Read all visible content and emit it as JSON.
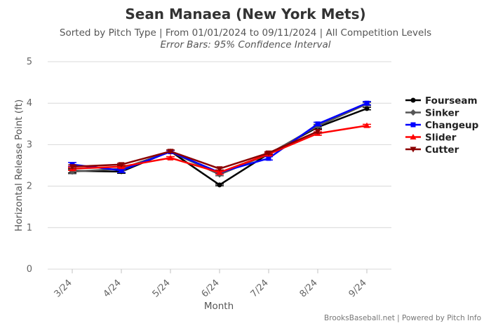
{
  "chart_data": {
    "type": "line",
    "title": "Sean Manaea (New York Mets)",
    "subtitle": "Sorted by Pitch Type | From 01/01/2024 to 09/11/2024 | All Competition Levels",
    "subtitle2": "Error Bars: 95% Confidence Interval",
    "xlabel": "Month",
    "ylabel": "Horizontal Release Point (ft)",
    "ylim": [
      0,
      5
    ],
    "yticks": [
      "0",
      "1",
      "2",
      "3",
      "4",
      "5"
    ],
    "categories": [
      "3/24",
      "4/24",
      "5/24",
      "6/24",
      "7/24",
      "8/24",
      "9/24"
    ],
    "grid": true,
    "legend_position": "right",
    "credit": "BrooksBaseball.net | Powered by Pitch Info",
    "series": [
      {
        "name": "Fourseam",
        "color": "#000000",
        "marker": "circle",
        "values": [
          2.37,
          2.35,
          2.84,
          2.03,
          2.78,
          3.42,
          3.87
        ],
        "err": [
          0.05,
          0.04,
          0.03,
          0.02,
          0.03,
          0.04,
          0.03
        ]
      },
      {
        "name": "Sinker",
        "color": "#555555",
        "marker": "diamond",
        "values": [
          2.35,
          2.42,
          2.83,
          2.28,
          2.77,
          3.45,
          3.98
        ],
        "err": [
          0.05,
          0.04,
          0.03,
          0.03,
          0.03,
          0.04,
          0.04
        ]
      },
      {
        "name": "Changeup",
        "color": "#0000ff",
        "marker": "square",
        "values": [
          2.52,
          2.38,
          2.83,
          2.33,
          2.67,
          3.5,
          4.0
        ],
        "err": [
          0.05,
          0.05,
          0.03,
          0.04,
          0.04,
          0.04,
          0.04
        ]
      },
      {
        "name": "Slider",
        "color": "#ff0000",
        "marker": "triangle",
        "values": [
          2.42,
          2.47,
          2.68,
          2.33,
          2.77,
          3.27,
          3.46
        ],
        "err": [
          0.04,
          0.03,
          0.03,
          0.04,
          0.03,
          0.04,
          0.03
        ]
      },
      {
        "name": "Cutter",
        "color": "#8b0000",
        "marker": "triangle-down",
        "values": [
          2.47,
          2.52,
          2.84,
          2.42,
          2.8,
          3.32,
          null
        ],
        "err": [
          0.04,
          0.03,
          0.03,
          0.03,
          0.03,
          0.04,
          0.0
        ]
      }
    ]
  }
}
